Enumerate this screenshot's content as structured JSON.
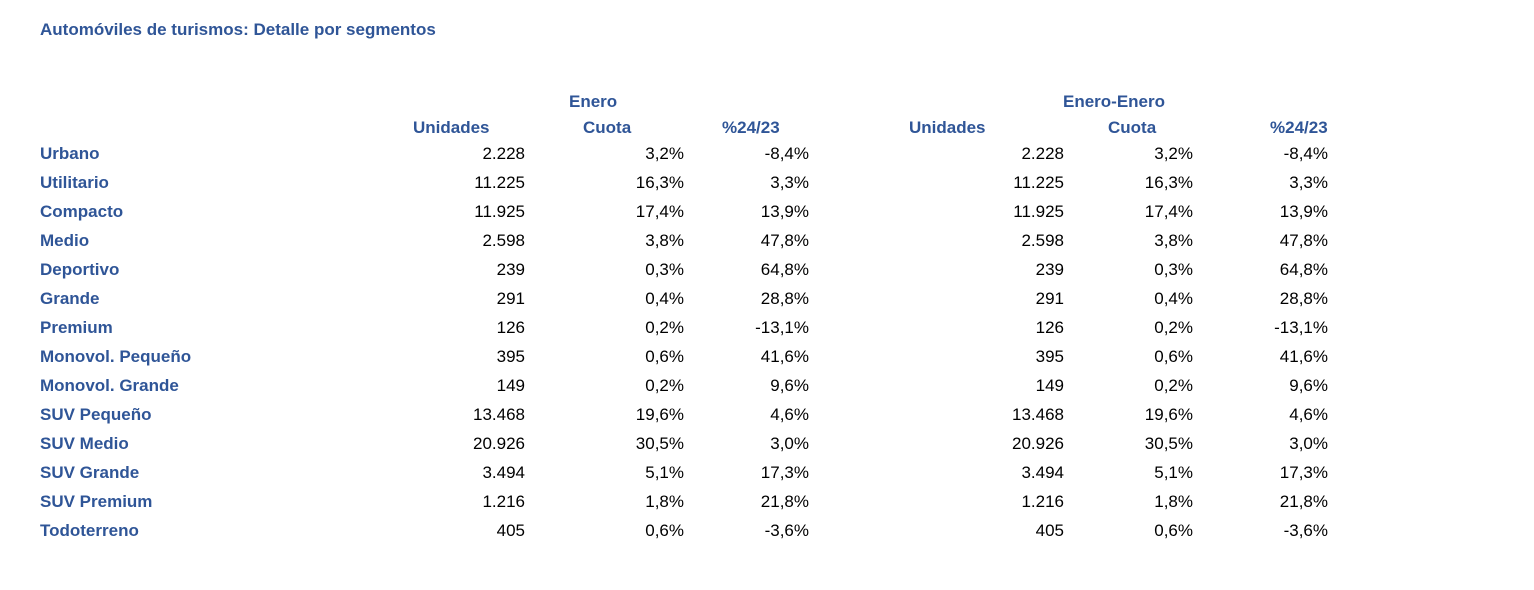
{
  "title": "Automóviles de turismos: Detalle por segmentos",
  "groups": {
    "month": "Enero",
    "ytd": "Enero-Enero"
  },
  "columns": {
    "month": [
      "Unidades",
      "Cuota",
      "%24/23"
    ],
    "ytd": [
      "Unidades",
      "Cuota",
      "%24/23"
    ]
  },
  "rows": [
    {
      "segment": "Urbano",
      "month": [
        "2.228",
        "3,2%",
        "-8,4%"
      ],
      "ytd": [
        "2.228",
        "3,2%",
        "-8,4%"
      ]
    },
    {
      "segment": "Utilitario",
      "month": [
        "11.225",
        "16,3%",
        "3,3%"
      ],
      "ytd": [
        "11.225",
        "16,3%",
        "3,3%"
      ]
    },
    {
      "segment": "Compacto",
      "month": [
        "11.925",
        "17,4%",
        "13,9%"
      ],
      "ytd": [
        "11.925",
        "17,4%",
        "13,9%"
      ]
    },
    {
      "segment": "Medio",
      "month": [
        "2.598",
        "3,8%",
        "47,8%"
      ],
      "ytd": [
        "2.598",
        "3,8%",
        "47,8%"
      ]
    },
    {
      "segment": "Deportivo",
      "month": [
        "239",
        "0,3%",
        "64,8%"
      ],
      "ytd": [
        "239",
        "0,3%",
        "64,8%"
      ]
    },
    {
      "segment": "Grande",
      "month": [
        "291",
        "0,4%",
        "28,8%"
      ],
      "ytd": [
        "291",
        "0,4%",
        "28,8%"
      ]
    },
    {
      "segment": "Premium",
      "month": [
        "126",
        "0,2%",
        "-13,1%"
      ],
      "ytd": [
        "126",
        "0,2%",
        "-13,1%"
      ]
    },
    {
      "segment": "Monovol. Pequeño",
      "month": [
        "395",
        "0,6%",
        "41,6%"
      ],
      "ytd": [
        "395",
        "0,6%",
        "41,6%"
      ]
    },
    {
      "segment": "Monovol. Grande",
      "month": [
        "149",
        "0,2%",
        "9,6%"
      ],
      "ytd": [
        "149",
        "0,2%",
        "9,6%"
      ]
    },
    {
      "segment": "SUV Pequeño",
      "month": [
        "13.468",
        "19,6%",
        "4,6%"
      ],
      "ytd": [
        "13.468",
        "19,6%",
        "4,6%"
      ]
    },
    {
      "segment": "SUV Medio",
      "month": [
        "20.926",
        "30,5%",
        "3,0%"
      ],
      "ytd": [
        "20.926",
        "30,5%",
        "3,0%"
      ]
    },
    {
      "segment": "SUV Grande",
      "month": [
        "3.494",
        "5,1%",
        "17,3%"
      ],
      "ytd": [
        "3.494",
        "5,1%",
        "17,3%"
      ]
    },
    {
      "segment": "SUV Premium",
      "month": [
        "1.216",
        "1,8%",
        "21,8%"
      ],
      "ytd": [
        "1.216",
        "1,8%",
        "21,8%"
      ]
    },
    {
      "segment": "Todoterreno",
      "month": [
        "405",
        "0,6%",
        "-3,6%"
      ],
      "ytd": [
        "405",
        "0,6%",
        "-3,6%"
      ]
    }
  ]
}
